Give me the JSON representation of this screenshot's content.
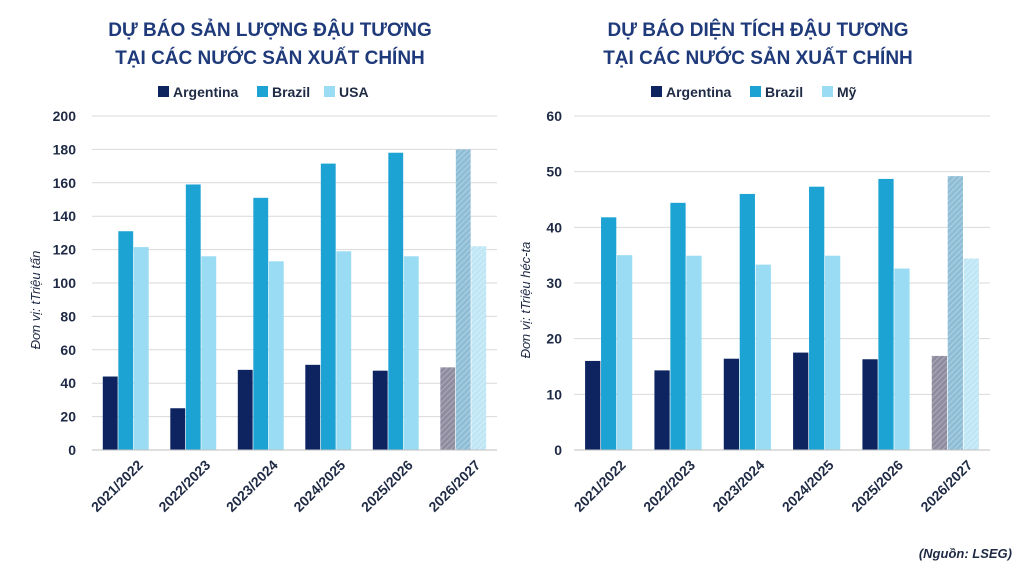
{
  "source": "(Nguồn: LSEG)",
  "colors": {
    "argentina": "#0d2461",
    "brazil": "#1ca3d4",
    "third": "#99dcf3",
    "forecast_argentina": "#9a97a8",
    "forecast_brazil": "#9cc6dc",
    "forecast_third": "#c4e9f7"
  },
  "chart_data": [
    {
      "type": "bar",
      "title_line1": "DỰ BÁO SẢN LƯỢNG ĐẬU TƯƠNG",
      "title_line2": "TẠI CÁC NƯỚC SẢN XUẤT CHÍNH",
      "ylabel": "Đơn vị: tTriệu tấn",
      "ylim": [
        0,
        200
      ],
      "yticks": [
        "0",
        "20",
        "40",
        "60",
        "80",
        "100",
        "120",
        "140",
        "160",
        "180",
        "200"
      ],
      "categories": [
        "2021/2022",
        "2022/2023",
        "2023/2024",
        "2024/2025",
        "2025/2026",
        "2026/2027"
      ],
      "series": [
        {
          "name": "Argentina",
          "values": [
            44,
            25,
            48,
            51,
            47.5,
            49.5
          ]
        },
        {
          "name": "Brazil",
          "values": [
            131,
            159,
            151,
            171.5,
            178,
            180
          ]
        },
        {
          "name": "USA",
          "values": [
            121.5,
            116,
            113,
            119,
            116,
            122
          ]
        }
      ],
      "legend_position": "top-center",
      "grid": true
    },
    {
      "type": "bar",
      "title_line1": "DỰ BÁO DIỆN TÍCH ĐẬU TƯƠNG",
      "title_line2": "TẠI CÁC NƯỚC SẢN XUẤT CHÍNH",
      "ylabel": "Đơn vị: tTriệu héc-ta",
      "ylim": [
        0,
        60
      ],
      "yticks": [
        "0",
        "10",
        "20",
        "30",
        "40",
        "50",
        "60"
      ],
      "categories": [
        "2021/2022",
        "2022/2023",
        "2023/2024",
        "2024/2025",
        "2025/2026",
        "2026/2027"
      ],
      "series": [
        {
          "name": "Argentina",
          "values": [
            16,
            14.3,
            16.4,
            17.5,
            16.3,
            16.9
          ]
        },
        {
          "name": "Brazil",
          "values": [
            41.8,
            44.4,
            46,
            47.3,
            48.7,
            49.2
          ]
        },
        {
          "name": "Mỹ",
          "values": [
            35,
            34.9,
            33.3,
            34.9,
            32.6,
            34.4
          ]
        }
      ],
      "legend_position": "top-center",
      "grid": true
    }
  ]
}
